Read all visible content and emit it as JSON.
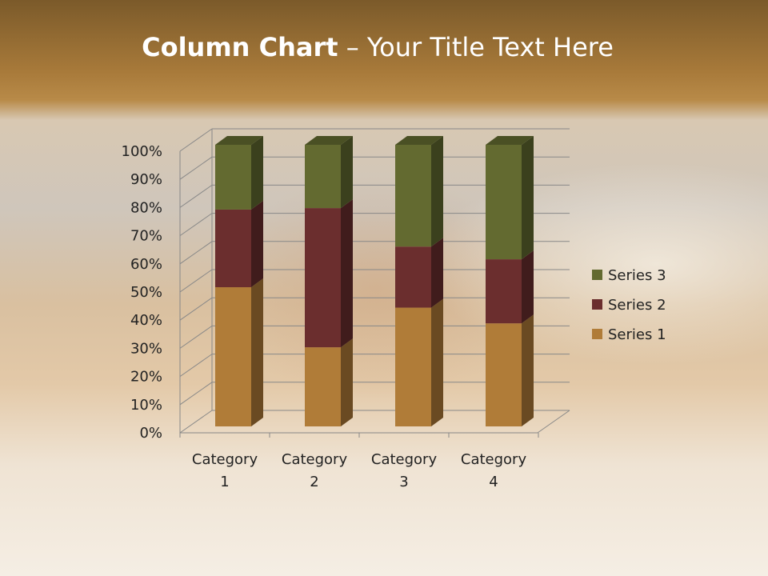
{
  "title": {
    "bold": "Column Chart",
    "rest": " – Your Title Text Here"
  },
  "chart_data": {
    "type": "bar",
    "stacked": "percent",
    "three_d": true,
    "categories": [
      "Category 1",
      "Category 2",
      "Category 3",
      "Category 4"
    ],
    "category_lines": [
      [
        "Category",
        "1"
      ],
      [
        "Category",
        "2"
      ],
      [
        "Category",
        "3"
      ],
      [
        "Category",
        "4"
      ]
    ],
    "series": [
      {
        "name": "Series 1",
        "values": [
          4.3,
          2.5,
          3.5,
          4.5
        ],
        "color": "#b07c38"
      },
      {
        "name": "Series 2",
        "values": [
          2.4,
          4.4,
          1.8,
          2.8
        ],
        "color": "#6b2e2e"
      },
      {
        "name": "Series 3",
        "values": [
          2,
          2,
          3,
          5
        ],
        "color": "#636a30"
      }
    ],
    "ylim": [
      0,
      100
    ],
    "yticks": [
      "0%",
      "10%",
      "20%",
      "30%",
      "40%",
      "50%",
      "60%",
      "70%",
      "80%",
      "90%",
      "100%"
    ],
    "grid": true,
    "legend": "right"
  }
}
